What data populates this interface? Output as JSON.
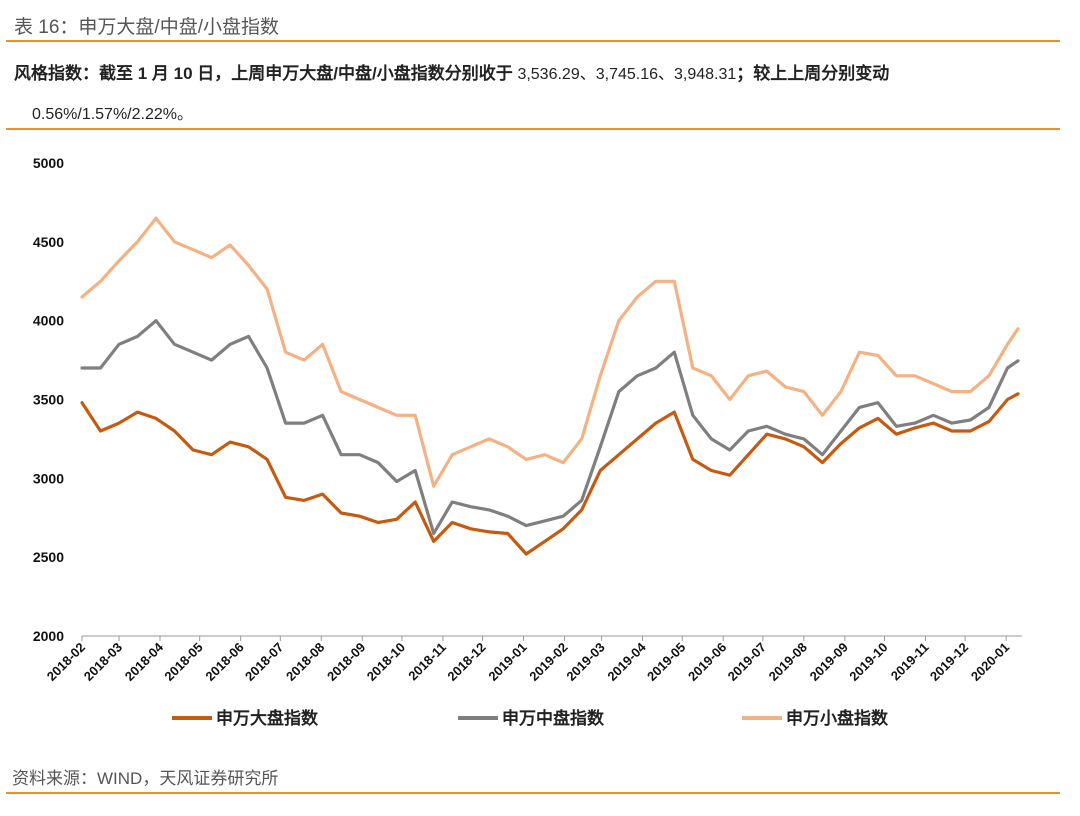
{
  "header": {
    "table_title": "表 16：申万大盘/中盘/小盘指数",
    "summary_line1_a": "风格指数：截至 1 月 10 日，上周申万大盘/中盘/小盘指数分别收于",
    "summary_line1_nums": "3,536.29、3,745.16、3,948.31",
    "summary_line1_b": "；较上上周分别变动",
    "summary_line2": "0.56%/1.57%/2.22%。"
  },
  "footer": {
    "source": "资料来源：WIND，天风证券研究所"
  },
  "colors": {
    "rule": "#e8902e",
    "large": "#c55a11",
    "mid": "#7f7f7f",
    "small": "#f4b183"
  },
  "chart_data": {
    "type": "line",
    "x_dates": [
      "2018-02-01",
      "2018-02-15",
      "2018-03-01",
      "2018-03-15",
      "2018-03-29",
      "2018-04-12",
      "2018-04-26",
      "2018-05-10",
      "2018-05-24",
      "2018-06-07",
      "2018-06-21",
      "2018-07-05",
      "2018-07-19",
      "2018-08-02",
      "2018-08-16",
      "2018-08-30",
      "2018-09-13",
      "2018-09-27",
      "2018-10-11",
      "2018-10-25",
      "2018-11-08",
      "2018-11-22",
      "2018-12-06",
      "2018-12-20",
      "2019-01-03",
      "2019-01-17",
      "2019-01-31",
      "2019-02-14",
      "2019-02-28",
      "2019-03-14",
      "2019-03-28",
      "2019-04-11",
      "2019-04-25",
      "2019-05-09",
      "2019-05-23",
      "2019-06-06",
      "2019-06-20",
      "2019-07-04",
      "2019-07-18",
      "2019-08-01",
      "2019-08-15",
      "2019-08-29",
      "2019-09-12",
      "2019-09-26",
      "2019-10-10",
      "2019-10-24",
      "2019-11-07",
      "2019-11-21",
      "2019-12-05",
      "2019-12-19",
      "2020-01-02",
      "2020-01-10"
    ],
    "series": [
      {
        "name": "申万大盘指数",
        "values": [
          3480,
          3300,
          3350,
          3420,
          3380,
          3300,
          3180,
          3150,
          3230,
          3200,
          3120,
          2880,
          2860,
          2900,
          2780,
          2760,
          2720,
          2740,
          2850,
          2600,
          2720,
          2680,
          2660,
          2650,
          2520,
          2600,
          2680,
          2800,
          3050,
          3150,
          3250,
          3350,
          3420,
          3120,
          3050,
          3020,
          3150,
          3280,
          3250,
          3200,
          3100,
          3220,
          3320,
          3380,
          3280,
          3320,
          3350,
          3300,
          3300,
          3360,
          3500,
          3536.29
        ]
      },
      {
        "name": "申万中盘指数",
        "values": [
          3700,
          3700,
          3850,
          3900,
          4000,
          3850,
          3800,
          3750,
          3850,
          3900,
          3700,
          3350,
          3350,
          3400,
          3150,
          3150,
          3100,
          2980,
          3050,
          2650,
          2850,
          2820,
          2800,
          2760,
          2700,
          2730,
          2760,
          2860,
          3200,
          3550,
          3650,
          3700,
          3800,
          3400,
          3250,
          3180,
          3300,
          3330,
          3280,
          3250,
          3150,
          3300,
          3450,
          3480,
          3330,
          3350,
          3400,
          3350,
          3370,
          3450,
          3700,
          3745.16
        ]
      },
      {
        "name": "申万小盘指数",
        "values": [
          4150,
          4250,
          4380,
          4500,
          4650,
          4500,
          4450,
          4400,
          4480,
          4350,
          4200,
          3800,
          3750,
          3850,
          3550,
          3500,
          3450,
          3400,
          3400,
          2950,
          3150,
          3200,
          3250,
          3200,
          3120,
          3150,
          3100,
          3250,
          3650,
          4000,
          4150,
          4250,
          4250,
          3700,
          3650,
          3500,
          3650,
          3680,
          3580,
          3550,
          3400,
          3550,
          3800,
          3780,
          3650,
          3650,
          3600,
          3550,
          3550,
          3650,
          3850,
          3948.31
        ]
      }
    ],
    "xticks": [
      "2018-02",
      "2018-03",
      "2018-04",
      "2018-05",
      "2018-06",
      "2018-07",
      "2018-08",
      "2018-09",
      "2018-10",
      "2018-11",
      "2018-12",
      "2019-01",
      "2019-02",
      "2019-03",
      "2019-04",
      "2019-05",
      "2019-06",
      "2019-07",
      "2019-08",
      "2019-09",
      "2019-10",
      "2019-11",
      "2019-12",
      "2020-01"
    ],
    "yticks": [
      "2000",
      "2500",
      "3000",
      "3500",
      "4000",
      "4500",
      "5000"
    ],
    "ylim": [
      2000,
      5000
    ],
    "legend_position": "bottom",
    "grid": false
  }
}
